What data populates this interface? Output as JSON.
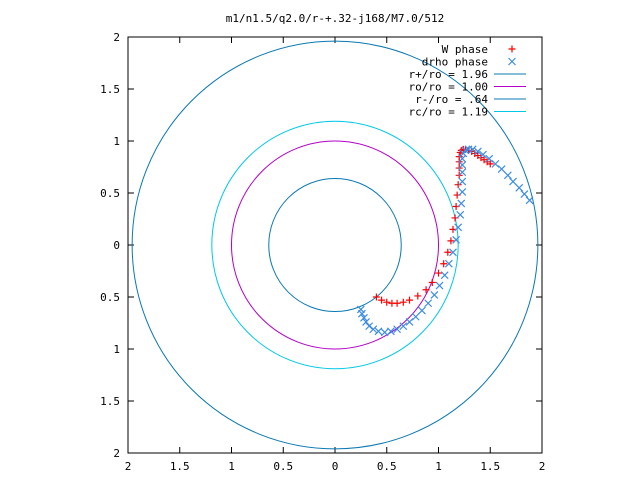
{
  "chart_data": {
    "type": "scatter",
    "title": "m1/n1.5/q2.0/r-+.32-j168/M7.0/512",
    "xlabel": "",
    "ylabel": "",
    "xlim": [
      -2,
      2
    ],
    "ylim": [
      -2,
      2
    ],
    "x_ticks": [
      -2,
      -1.5,
      -1,
      -0.5,
      0,
      0.5,
      1,
      1.5,
      2
    ],
    "y_ticks": [
      -2,
      -1.5,
      -1,
      -0.5,
      0,
      0.5,
      1,
      1.5,
      2
    ],
    "x_tick_labels": [
      "2",
      "1.5",
      "1",
      "0.5",
      "0",
      "0.5",
      "1",
      "1.5",
      "2"
    ],
    "y_tick_labels": [
      "2",
      "1.5",
      "1",
      "0.5",
      "0",
      "0.5",
      "1",
      "1.5",
      "2"
    ],
    "grid": false,
    "legend_position": "top-right",
    "series": [
      {
        "name": "W phase",
        "kind": "points",
        "marker": "plus",
        "color": "#ff0000",
        "x": [
          0.4,
          0.45,
          0.5,
          0.55,
          0.6,
          0.66,
          0.72,
          0.8,
          0.88,
          0.94,
          1.0,
          1.05,
          1.09,
          1.12,
          1.14,
          1.16,
          1.17,
          1.18,
          1.19,
          1.2,
          1.2,
          1.2,
          1.2,
          1.21,
          1.22,
          1.24,
          1.26,
          1.29,
          1.32,
          1.35,
          1.38,
          1.41,
          1.44,
          1.47,
          1.5
        ],
        "y": [
          -0.5,
          -0.53,
          -0.55,
          -0.56,
          -0.56,
          -0.55,
          -0.53,
          -0.49,
          -0.43,
          -0.36,
          -0.27,
          -0.18,
          -0.07,
          0.04,
          0.15,
          0.26,
          0.37,
          0.48,
          0.58,
          0.67,
          0.74,
          0.8,
          0.85,
          0.89,
          0.91,
          0.92,
          0.92,
          0.91,
          0.9,
          0.88,
          0.86,
          0.84,
          0.82,
          0.8,
          0.78
        ]
      },
      {
        "name": "drho phase",
        "kind": "points",
        "marker": "cross",
        "color": "#3c8ce6",
        "x": [
          0.25,
          0.26,
          0.28,
          0.3,
          0.33,
          0.37,
          0.42,
          0.48,
          0.54,
          0.6,
          0.66,
          0.72,
          0.78,
          0.84,
          0.9,
          0.96,
          1.01,
          1.06,
          1.1,
          1.14,
          1.17,
          1.19,
          1.21,
          1.22,
          1.23,
          1.23,
          1.23,
          1.23,
          1.23,
          1.24,
          1.26,
          1.29,
          1.33,
          1.38,
          1.43,
          1.49,
          1.55,
          1.61,
          1.67,
          1.72,
          1.78,
          1.83,
          1.88
        ],
        "y": [
          -0.62,
          -0.66,
          -0.7,
          -0.74,
          -0.78,
          -0.81,
          -0.83,
          -0.84,
          -0.83,
          -0.81,
          -0.78,
          -0.74,
          -0.69,
          -0.63,
          -0.56,
          -0.48,
          -0.39,
          -0.29,
          -0.18,
          -0.07,
          0.05,
          0.17,
          0.29,
          0.4,
          0.51,
          0.61,
          0.7,
          0.77,
          0.83,
          0.88,
          0.91,
          0.92,
          0.92,
          0.9,
          0.87,
          0.83,
          0.78,
          0.73,
          0.67,
          0.61,
          0.55,
          0.49,
          0.43
        ]
      },
      {
        "name": "r+/ro = 1.96",
        "kind": "circle",
        "radius": 1.96,
        "color": "#0a78b4"
      },
      {
        "name": "ro/ro = 1.00",
        "kind": "circle",
        "radius": 1.0,
        "color": "#b400c8"
      },
      {
        "name": "r-/ro = .64",
        "kind": "circle",
        "radius": 0.64,
        "color": "#0a78b4"
      },
      {
        "name": "rc/ro = 1.19",
        "kind": "circle",
        "radius": 1.19,
        "color": "#00c8e6"
      }
    ]
  }
}
